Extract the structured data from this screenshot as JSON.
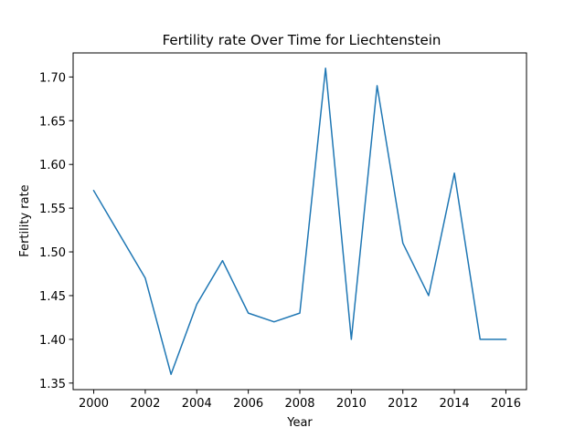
{
  "chart_data": {
    "type": "line",
    "title": "Fertility rate Over Time for Liechtenstein",
    "xlabel": "Year",
    "ylabel": "Fertility rate",
    "x": [
      2000,
      2002,
      2003,
      2004,
      2005,
      2006,
      2007,
      2008,
      2009,
      2010,
      2011,
      2012,
      2013,
      2014,
      2015,
      2016
    ],
    "series": [
      {
        "values": [
          1.57,
          1.47,
          1.36,
          1.44,
          1.49,
          1.43,
          1.42,
          1.43,
          1.71,
          1.4,
          1.69,
          1.51,
          1.45,
          1.59,
          1.4,
          1.4
        ],
        "color": "#1f77b4"
      }
    ],
    "xticks": [
      "2000",
      "2002",
      "2004",
      "2006",
      "2008",
      "2010",
      "2012",
      "2014",
      "2016"
    ],
    "yticks": [
      "1.35",
      "1.40",
      "1.45",
      "1.50",
      "1.55",
      "1.60",
      "1.65",
      "1.70"
    ],
    "xlim": [
      1999.2,
      2016.8
    ],
    "ylim": [
      1.3425,
      1.7275
    ],
    "grid": false,
    "legend": "none"
  }
}
